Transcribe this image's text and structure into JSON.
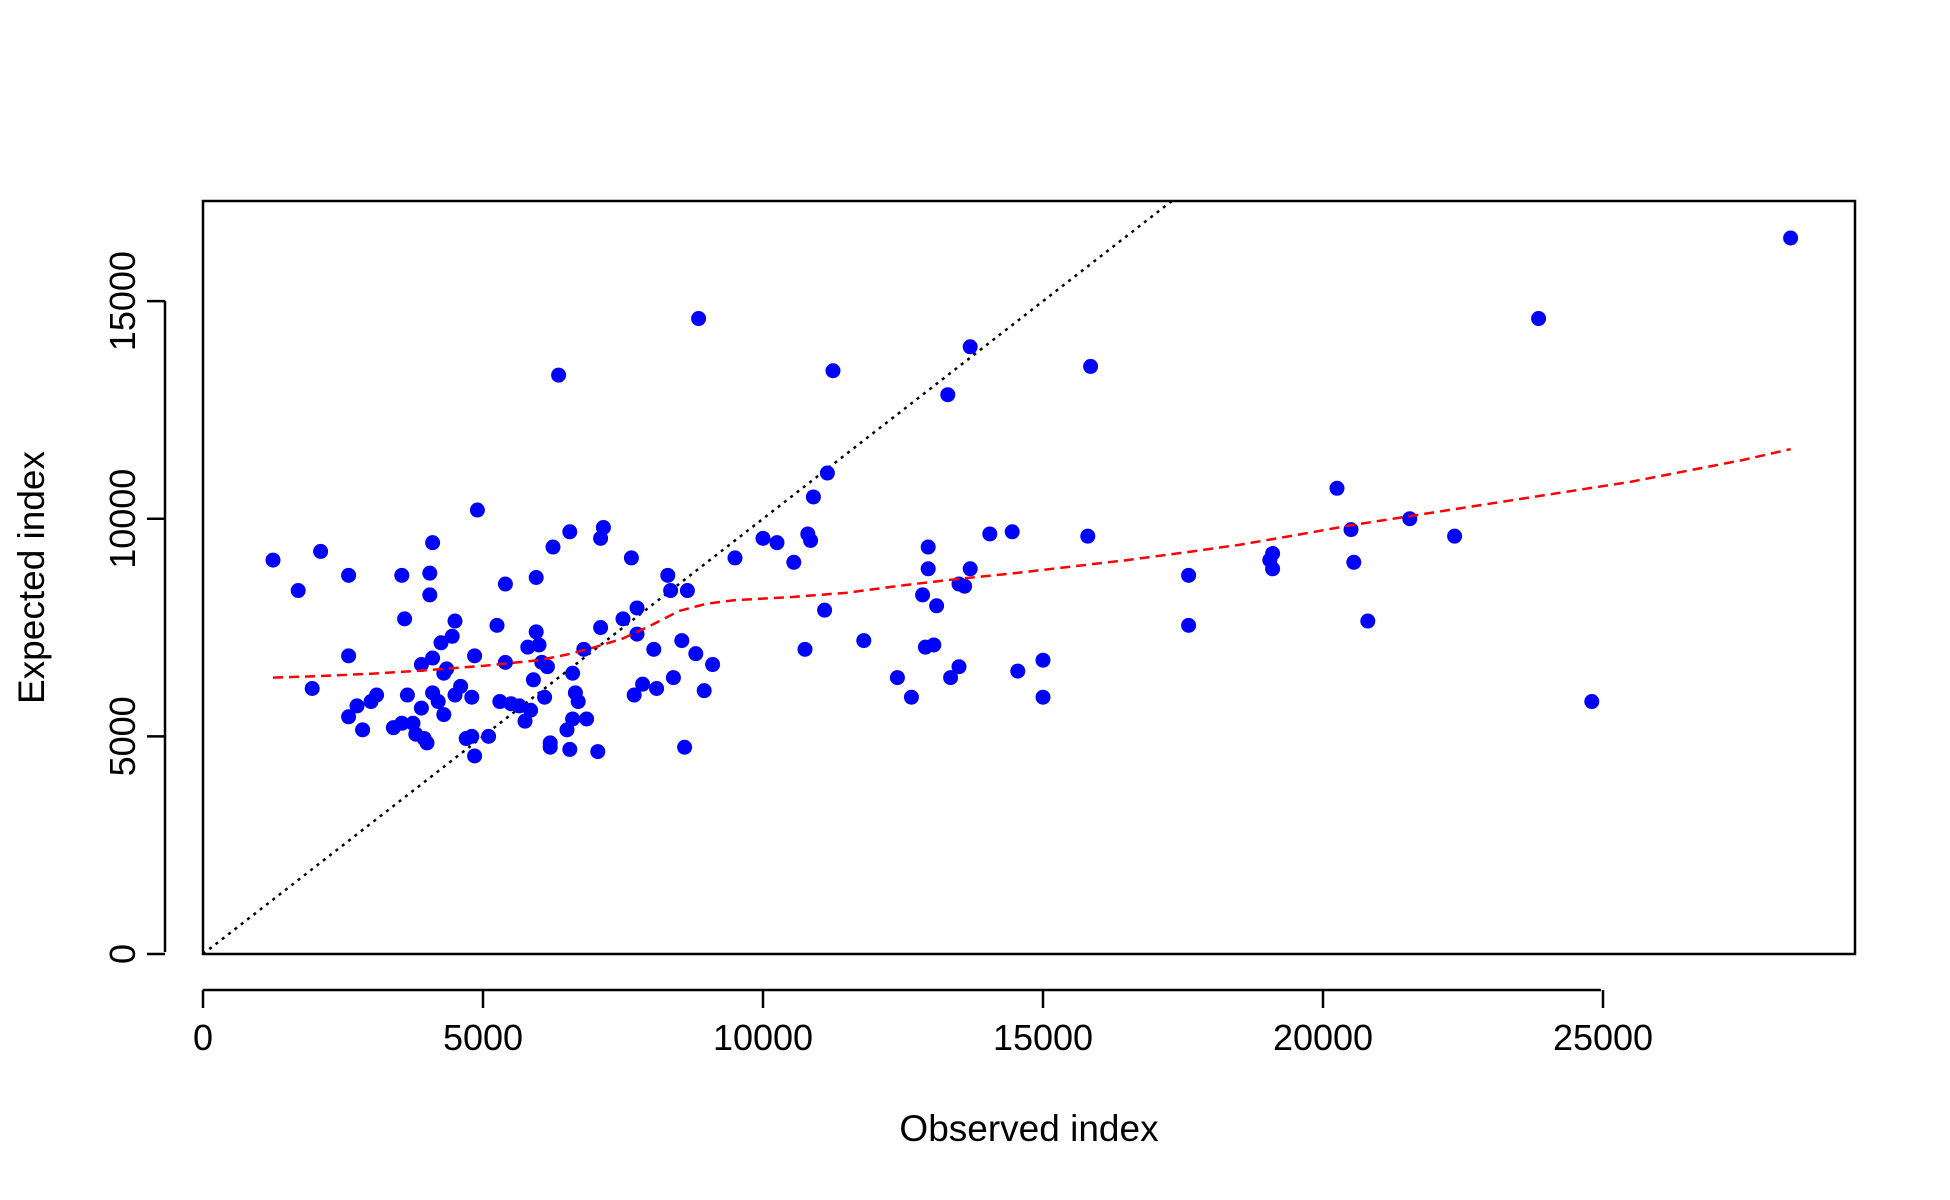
{
  "chart_data": {
    "type": "scatter",
    "title": "",
    "xlabel": "Observed index",
    "ylabel": "Expected index",
    "xlim": [
      0,
      29500
    ],
    "ylim": [
      0,
      17300
    ],
    "x_ticks": [
      0,
      5000,
      10000,
      15000,
      20000,
      25000
    ],
    "y_ticks": [
      0,
      5000,
      10000,
      15000
    ],
    "grid": false,
    "legend": "none",
    "point_color": "#0000ff",
    "smooth_color": "#ff0000",
    "reference_line_color": "#000000",
    "reference_line": {
      "slope": 1,
      "intercept": 0
    },
    "points": [
      {
        "x": 1250,
        "y": 9050
      },
      {
        "x": 1700,
        "y": 8350
      },
      {
        "x": 1950,
        "y": 6100
      },
      {
        "x": 2100,
        "y": 9250
      },
      {
        "x": 2600,
        "y": 8700
      },
      {
        "x": 2600,
        "y": 6850
      },
      {
        "x": 2600,
        "y": 5450
      },
      {
        "x": 2750,
        "y": 5700
      },
      {
        "x": 2850,
        "y": 5150
      },
      {
        "x": 3000,
        "y": 5800
      },
      {
        "x": 3100,
        "y": 5950
      },
      {
        "x": 3400,
        "y": 5200
      },
      {
        "x": 3550,
        "y": 5300
      },
      {
        "x": 3550,
        "y": 8700
      },
      {
        "x": 3600,
        "y": 7700
      },
      {
        "x": 3650,
        "y": 5950
      },
      {
        "x": 3750,
        "y": 5300
      },
      {
        "x": 3800,
        "y": 5050
      },
      {
        "x": 3900,
        "y": 6650
      },
      {
        "x": 3900,
        "y": 5650
      },
      {
        "x": 3950,
        "y": 4950
      },
      {
        "x": 4000,
        "y": 4850
      },
      {
        "x": 4050,
        "y": 8750
      },
      {
        "x": 4050,
        "y": 8250
      },
      {
        "x": 4100,
        "y": 9450
      },
      {
        "x": 4100,
        "y": 6800
      },
      {
        "x": 4100,
        "y": 6000
      },
      {
        "x": 4200,
        "y": 5800
      },
      {
        "x": 4250,
        "y": 7150
      },
      {
        "x": 4300,
        "y": 6450
      },
      {
        "x": 4300,
        "y": 5500
      },
      {
        "x": 4350,
        "y": 6550
      },
      {
        "x": 4450,
        "y": 7300
      },
      {
        "x": 4500,
        "y": 7650
      },
      {
        "x": 4500,
        "y": 5950
      },
      {
        "x": 4600,
        "y": 6150
      },
      {
        "x": 4700,
        "y": 4950
      },
      {
        "x": 4800,
        "y": 5000
      },
      {
        "x": 4800,
        "y": 5900
      },
      {
        "x": 4850,
        "y": 6850
      },
      {
        "x": 4850,
        "y": 4550
      },
      {
        "x": 4900,
        "y": 10200
      },
      {
        "x": 5100,
        "y": 5000
      },
      {
        "x": 5250,
        "y": 7550
      },
      {
        "x": 5300,
        "y": 5800
      },
      {
        "x": 5400,
        "y": 6700
      },
      {
        "x": 5400,
        "y": 8500
      },
      {
        "x": 5500,
        "y": 5750
      },
      {
        "x": 5650,
        "y": 5700
      },
      {
        "x": 5750,
        "y": 5350
      },
      {
        "x": 5800,
        "y": 7050
      },
      {
        "x": 5850,
        "y": 5600
      },
      {
        "x": 5900,
        "y": 6300
      },
      {
        "x": 5950,
        "y": 7400
      },
      {
        "x": 5950,
        "y": 8650
      },
      {
        "x": 6000,
        "y": 7100
      },
      {
        "x": 6050,
        "y": 6700
      },
      {
        "x": 6100,
        "y": 5900
      },
      {
        "x": 6150,
        "y": 6600
      },
      {
        "x": 6200,
        "y": 4750
      },
      {
        "x": 6200,
        "y": 4850
      },
      {
        "x": 6250,
        "y": 9350
      },
      {
        "x": 6350,
        "y": 13300
      },
      {
        "x": 6500,
        "y": 5150
      },
      {
        "x": 6550,
        "y": 9700
      },
      {
        "x": 6550,
        "y": 4700
      },
      {
        "x": 6600,
        "y": 5400
      },
      {
        "x": 6600,
        "y": 6450
      },
      {
        "x": 6650,
        "y": 6000
      },
      {
        "x": 6700,
        "y": 5800
      },
      {
        "x": 6800,
        "y": 7000
      },
      {
        "x": 6850,
        "y": 5400
      },
      {
        "x": 7050,
        "y": 4650
      },
      {
        "x": 7100,
        "y": 7500
      },
      {
        "x": 7100,
        "y": 9550
      },
      {
        "x": 7150,
        "y": 9800
      },
      {
        "x": 7500,
        "y": 7700
      },
      {
        "x": 7650,
        "y": 9100
      },
      {
        "x": 7700,
        "y": 5950
      },
      {
        "x": 7750,
        "y": 7350
      },
      {
        "x": 7750,
        "y": 7950
      },
      {
        "x": 7850,
        "y": 6200
      },
      {
        "x": 8050,
        "y": 7000
      },
      {
        "x": 8100,
        "y": 6100
      },
      {
        "x": 8300,
        "y": 8700
      },
      {
        "x": 8350,
        "y": 8350
      },
      {
        "x": 8400,
        "y": 6350
      },
      {
        "x": 8550,
        "y": 7200
      },
      {
        "x": 8600,
        "y": 4750
      },
      {
        "x": 8650,
        "y": 8350
      },
      {
        "x": 8800,
        "y": 6900
      },
      {
        "x": 8850,
        "y": 14600
      },
      {
        "x": 8950,
        "y": 6050
      },
      {
        "x": 9100,
        "y": 6650
      },
      {
        "x": 9500,
        "y": 9100
      },
      {
        "x": 10000,
        "y": 9550
      },
      {
        "x": 10250,
        "y": 9450
      },
      {
        "x": 10550,
        "y": 9000
      },
      {
        "x": 10750,
        "y": 7000
      },
      {
        "x": 10800,
        "y": 9650
      },
      {
        "x": 10850,
        "y": 9500
      },
      {
        "x": 10900,
        "y": 10500
      },
      {
        "x": 11100,
        "y": 7900
      },
      {
        "x": 11150,
        "y": 11050
      },
      {
        "x": 11250,
        "y": 13400
      },
      {
        "x": 11800,
        "y": 7200
      },
      {
        "x": 12400,
        "y": 6350
      },
      {
        "x": 12650,
        "y": 5900
      },
      {
        "x": 12850,
        "y": 8250
      },
      {
        "x": 12900,
        "y": 7050
      },
      {
        "x": 12950,
        "y": 8850
      },
      {
        "x": 12950,
        "y": 9350
      },
      {
        "x": 13050,
        "y": 7100
      },
      {
        "x": 13100,
        "y": 8000
      },
      {
        "x": 13300,
        "y": 12850
      },
      {
        "x": 13350,
        "y": 6350
      },
      {
        "x": 13500,
        "y": 6600
      },
      {
        "x": 13500,
        "y": 8500
      },
      {
        "x": 13600,
        "y": 8450
      },
      {
        "x": 13700,
        "y": 8850
      },
      {
        "x": 13700,
        "y": 13950
      },
      {
        "x": 14050,
        "y": 9650
      },
      {
        "x": 14450,
        "y": 9700
      },
      {
        "x": 14550,
        "y": 6500
      },
      {
        "x": 15000,
        "y": 5900
      },
      {
        "x": 15000,
        "y": 6750
      },
      {
        "x": 15800,
        "y": 9600
      },
      {
        "x": 15850,
        "y": 13500
      },
      {
        "x": 17600,
        "y": 8700
      },
      {
        "x": 17600,
        "y": 7550
      },
      {
        "x": 19050,
        "y": 9050
      },
      {
        "x": 19100,
        "y": 9200
      },
      {
        "x": 19100,
        "y": 8850
      },
      {
        "x": 20250,
        "y": 10700
      },
      {
        "x": 20500,
        "y": 9750
      },
      {
        "x": 20550,
        "y": 9000
      },
      {
        "x": 20800,
        "y": 7650
      },
      {
        "x": 21550,
        "y": 10000
      },
      {
        "x": 22350,
        "y": 9600
      },
      {
        "x": 23850,
        "y": 14600
      },
      {
        "x": 24800,
        "y": 5800
      },
      {
        "x": 28350,
        "y": 16450
      }
    ],
    "smooth_line": [
      {
        "x": 1250,
        "y": 6350
      },
      {
        "x": 2000,
        "y": 6380
      },
      {
        "x": 3000,
        "y": 6440
      },
      {
        "x": 4000,
        "y": 6520
      },
      {
        "x": 5000,
        "y": 6620
      },
      {
        "x": 6000,
        "y": 6750
      },
      {
        "x": 6500,
        "y": 6880
      },
      {
        "x": 7000,
        "y": 7050
      },
      {
        "x": 7500,
        "y": 7250
      },
      {
        "x": 8000,
        "y": 7550
      },
      {
        "x": 8500,
        "y": 7880
      },
      {
        "x": 9000,
        "y": 8050
      },
      {
        "x": 9500,
        "y": 8130
      },
      {
        "x": 10500,
        "y": 8200
      },
      {
        "x": 11500,
        "y": 8300
      },
      {
        "x": 12500,
        "y": 8470
      },
      {
        "x": 13500,
        "y": 8620
      },
      {
        "x": 14500,
        "y": 8750
      },
      {
        "x": 15500,
        "y": 8900
      },
      {
        "x": 16500,
        "y": 9050
      },
      {
        "x": 17500,
        "y": 9220
      },
      {
        "x": 18500,
        "y": 9400
      },
      {
        "x": 19500,
        "y": 9620
      },
      {
        "x": 20500,
        "y": 9850
      },
      {
        "x": 21500,
        "y": 10050
      },
      {
        "x": 22500,
        "y": 10250
      },
      {
        "x": 23500,
        "y": 10450
      },
      {
        "x": 24500,
        "y": 10650
      },
      {
        "x": 25500,
        "y": 10850
      },
      {
        "x": 26500,
        "y": 11100
      },
      {
        "x": 27500,
        "y": 11350
      },
      {
        "x": 28350,
        "y": 11600
      }
    ]
  }
}
